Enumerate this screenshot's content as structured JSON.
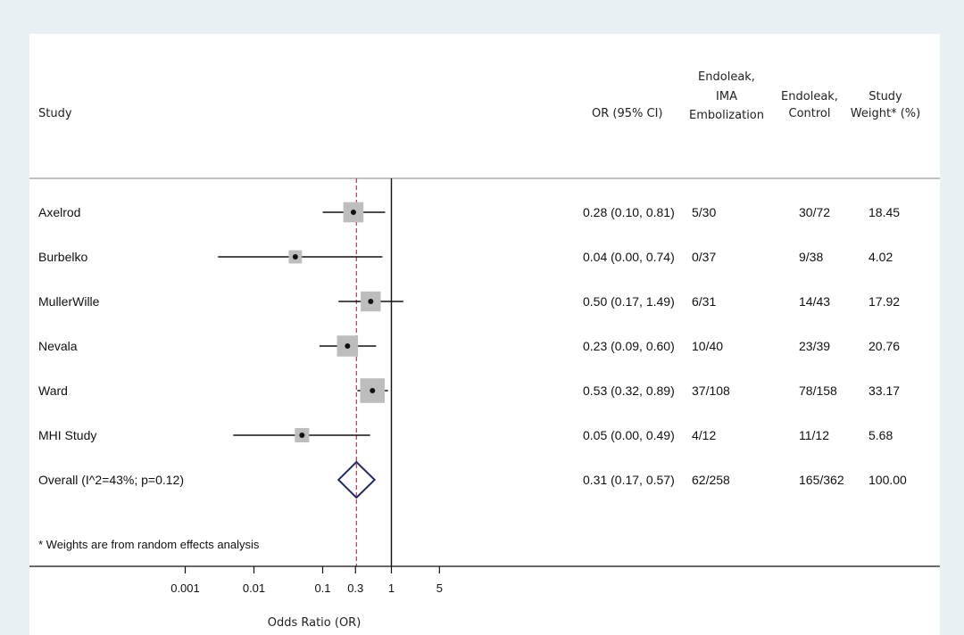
{
  "chart_data": {
    "type": "forest",
    "scale": "log",
    "xlabel": "Odds Ratio (OR)",
    "xticks": [
      0.001,
      0.01,
      0.1,
      0.3,
      1,
      5
    ],
    "xtick_labels": [
      "0.001",
      "0.01",
      "0.1",
      "0.3",
      "1",
      "5"
    ],
    "null_line": 1,
    "reference_line": 0.31,
    "columns": {
      "study": "Study",
      "or_ci": "OR (95% CI)",
      "emb": [
        "Endoleak,",
        "IMA",
        "Embolization"
      ],
      "ctrl": [
        "Endoleak,",
        "Control"
      ],
      "weight": [
        "Study",
        "Weight* (%)"
      ]
    },
    "studies": [
      {
        "name": "Axelrod",
        "or": 0.28,
        "lo": 0.1,
        "hi": 0.81,
        "or_ci_text": "0.28 (0.10, 0.81)",
        "emb": "5/30",
        "ctrl": "30/72",
        "weight": 18.45,
        "weight_text": "18.45"
      },
      {
        "name": "Burbelko",
        "or": 0.04,
        "lo": 0.003,
        "hi": 0.74,
        "or_ci_text": "0.04 (0.00, 0.74)",
        "emb": "0/37",
        "ctrl": "9/38",
        "weight": 4.02,
        "weight_text": "4.02"
      },
      {
        "name": "MullerWille",
        "or": 0.5,
        "lo": 0.17,
        "hi": 1.49,
        "or_ci_text": "0.50 (0.17, 1.49)",
        "emb": "6/31",
        "ctrl": "14/43",
        "weight": 17.92,
        "weight_text": "17.92"
      },
      {
        "name": "Nevala",
        "or": 0.23,
        "lo": 0.09,
        "hi": 0.6,
        "or_ci_text": "0.23 (0.09, 0.60)",
        "emb": "10/40",
        "ctrl": "23/39",
        "weight": 20.76,
        "weight_text": "20.76"
      },
      {
        "name": "Ward",
        "or": 0.53,
        "lo": 0.32,
        "hi": 0.89,
        "or_ci_text": "0.53 (0.32, 0.89)",
        "emb": "37/108",
        "ctrl": "78/158",
        "weight": 33.17,
        "weight_text": "33.17"
      },
      {
        "name": "MHI Study",
        "or": 0.05,
        "lo": 0.005,
        "hi": 0.49,
        "or_ci_text": "0.05 (0.00, 0.49)",
        "emb": "4/12",
        "ctrl": "11/12",
        "weight": 5.68,
        "weight_text": "5.68"
      }
    ],
    "overall": {
      "name": "Overall  (I^2=43%; p=0.12)",
      "or": 0.31,
      "lo": 0.17,
      "hi": 0.57,
      "or_ci_text": "0.31 (0.17, 0.57)",
      "emb": "62/258",
      "ctrl": "165/362",
      "weight_text": "100.00"
    },
    "footnote": "* Weights are from random effects analysis",
    "colors": {
      "box": "#bdbdbd",
      "diamond": "#1f2a6b",
      "reference": "#c0394b",
      "line": "#111111",
      "divider": "#9a9a9a"
    }
  }
}
